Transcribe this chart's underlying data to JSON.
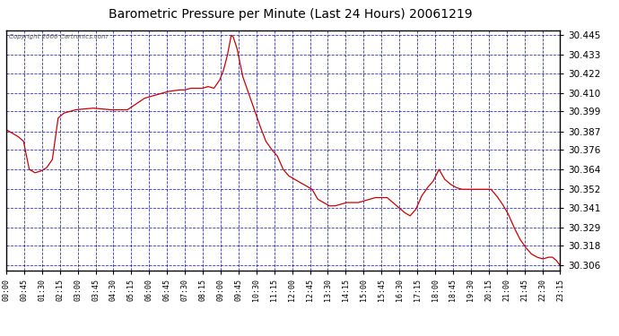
{
  "title": "Barometric Pressure per Minute (Last 24 Hours) 20061219",
  "copyright": "Copyright 2006 Cartronics.com",
  "bg_color": "#ffffff",
  "plot_bg_color": "#ffffff",
  "line_color": "#cc0000",
  "grid_color": "#0000bb",
  "text_color": "#000000",
  "border_color": "#000000",
  "ylim": [
    30.303,
    30.448
  ],
  "yticks": [
    30.306,
    30.318,
    30.329,
    30.341,
    30.352,
    30.364,
    30.376,
    30.387,
    30.399,
    30.41,
    30.422,
    30.433,
    30.445
  ],
  "xtick_labels": [
    "00:00",
    "00:45",
    "01:30",
    "02:15",
    "03:00",
    "03:45",
    "04:30",
    "05:15",
    "06:00",
    "06:45",
    "07:30",
    "08:15",
    "09:00",
    "09:45",
    "10:30",
    "11:15",
    "12:00",
    "12:45",
    "13:30",
    "14:15",
    "15:00",
    "15:45",
    "16:30",
    "17:15",
    "18:00",
    "18:45",
    "19:30",
    "20:15",
    "21:00",
    "21:45",
    "22:30",
    "23:15"
  ],
  "key_points": {
    "0_min": 30.388,
    "45_min": 30.381,
    "60_min": 30.37,
    "90_min": 30.363,
    "120_min": 30.37,
    "150_min": 30.398,
    "165_min": 30.4,
    "180_min": 30.4,
    "225_min": 30.401,
    "270_min": 30.4,
    "315_min": 30.4,
    "360_min": 30.407,
    "405_min": 30.41,
    "450_min": 30.412,
    "495_min": 30.413,
    "540_min": 30.413,
    "555_min": 30.418,
    "570_min": 30.424,
    "585_min": 30.445,
    "600_min": 30.438,
    "630_min": 30.41,
    "660_min": 30.387,
    "690_min": 30.376,
    "720_min": 30.363,
    "750_min": 30.357,
    "765_min": 30.355,
    "780_min": 30.352,
    "810_min": 30.344,
    "840_min": 30.345,
    "870_min": 30.341,
    "900_min": 30.341,
    "930_min": 30.344,
    "960_min": 30.352,
    "990_min": 30.352,
    "1005_min": 30.353,
    "1020_min": 30.353,
    "1035_min": 30.341,
    "1050_min": 30.336,
    "1080_min": 30.352,
    "1110_min": 30.357,
    "1125_min": 30.364,
    "1140_min": 30.357,
    "1170_min": 30.352,
    "1200_min": 30.352,
    "1230_min": 30.352,
    "1260_min": 30.341,
    "1290_min": 30.333,
    "1320_min": 30.32,
    "1350_min": 30.312,
    "1380_min": 30.311,
    "1410_min": 30.309,
    "1425_min": 30.311,
    "1440_min": 30.306
  }
}
